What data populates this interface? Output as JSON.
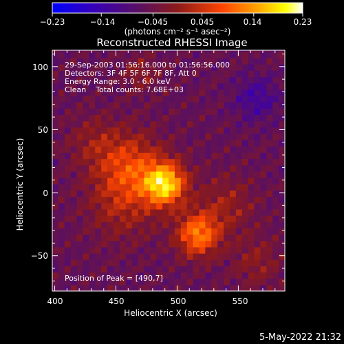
{
  "chart_data": {
    "type": "heatmap",
    "title": "Reconstructed RHESSI Image",
    "xlabel": "Heliocentric X (arcsec)",
    "ylabel": "Heliocentric Y (arcsec)",
    "xlim": [
      398,
      588
    ],
    "ylim": [
      -78,
      113
    ],
    "x_ticks": [
      400,
      450,
      500,
      550
    ],
    "x_tick_labels": [
      "400",
      "450",
      "500",
      "550"
    ],
    "y_ticks": [
      -50,
      0,
      50,
      100
    ],
    "y_tick_labels": [
      "−50",
      "0",
      "50",
      "100"
    ],
    "colorbar": {
      "range": [
        -0.23,
        0.23
      ],
      "tick_values": [
        -0.23,
        -0.14,
        -0.045,
        0.045,
        0.14,
        0.23
      ],
      "tick_labels": [
        "−0.23",
        "−0.14",
        "−0.045",
        "0.045",
        "0.14",
        "0.23"
      ],
      "unit_label": "(photons cm⁻² s⁻¹ asec⁻²)",
      "colormap": [
        "#0000ff",
        "#4b0082",
        "#8b1a1a",
        "#ff4500",
        "#ffa500",
        "#ffff00",
        "#ffffff"
      ]
    },
    "sources": [
      {
        "x": 490,
        "y": 7,
        "amplitude": 0.23,
        "width": 12
      },
      {
        "x": 517,
        "y": -33,
        "amplitude": 0.17,
        "width": 12
      },
      {
        "x": 462,
        "y": 22,
        "amplitude": 0.11,
        "width": 18
      },
      {
        "x": 455,
        "y": -8,
        "amplitude": 0.07,
        "width": 20
      },
      {
        "x": 540,
        "y": -10,
        "amplitude": 0.06,
        "width": 16
      },
      {
        "x": 432,
        "y": 40,
        "amplitude": 0.05,
        "width": 15
      },
      {
        "x": 565,
        "y": -55,
        "amplitude": 0.05,
        "width": 14
      },
      {
        "x": 470,
        "y": 95,
        "amplitude": 0.05,
        "width": 10
      },
      {
        "x": 565,
        "y": 75,
        "amplitude": -0.07,
        "width": 12
      }
    ],
    "annotations": {
      "time_range": "29-Sep-2003 01:56:16.000 to 01:56:56.000",
      "detectors": "Detectors: 3F 4F 5F 6F 7F 8F, Att 0",
      "energy_range": "Energy Range: 3.0 - 6.0 keV",
      "clean": "Clean    Total counts: 7.68E+03",
      "peak": "Position of Peak = [490,7]"
    },
    "footer_date": "5-May-2022 21:32"
  }
}
